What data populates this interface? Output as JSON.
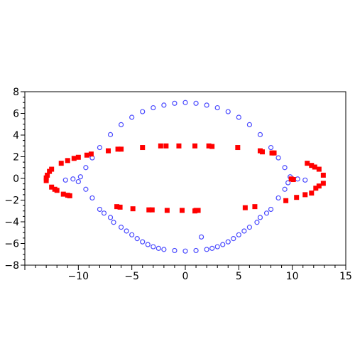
{
  "chart_data": {
    "type": "scatter",
    "title": "",
    "xlabel": "",
    "ylabel": "",
    "xlim": [
      -15,
      15
    ],
    "ylim": [
      -8,
      8
    ],
    "x_ticks": [
      -10,
      -5,
      0,
      5,
      10,
      15
    ],
    "x_tick_labels": [
      "−10",
      "−5",
      "0",
      "5",
      "10",
      "15"
    ],
    "y_ticks": [
      -8,
      -6,
      -4,
      -2,
      0,
      2,
      4,
      6,
      8
    ],
    "y_tick_labels": [
      "−8",
      "−6",
      "−4",
      "−2",
      "0",
      "2",
      "4",
      "6",
      "8"
    ],
    "grid": false,
    "legend": "none",
    "series": [
      {
        "marker": "open-circle",
        "color": "#4b4bff",
        "points": [
          [
            0.0,
            7.0
          ],
          [
            1.0,
            6.93
          ],
          [
            -1.0,
            6.93
          ],
          [
            2.0,
            6.76
          ],
          [
            -2.0,
            6.76
          ],
          [
            3.0,
            6.52
          ],
          [
            -3.0,
            6.52
          ],
          [
            4.0,
            6.16
          ],
          [
            -4.0,
            6.16
          ],
          [
            5.0,
            5.64
          ],
          [
            -5.0,
            5.64
          ],
          [
            6.0,
            4.96
          ],
          [
            -6.0,
            4.96
          ],
          [
            7.0,
            4.04
          ],
          [
            -7.0,
            4.04
          ],
          [
            8.0,
            2.85
          ],
          [
            -8.0,
            2.85
          ],
          [
            8.7,
            1.9
          ],
          [
            -8.7,
            1.9
          ],
          [
            9.3,
            1.0
          ],
          [
            -9.3,
            1.0
          ],
          [
            9.8,
            0.15
          ],
          [
            -9.8,
            0.15
          ],
          [
            10.5,
            -0.05
          ],
          [
            -10.5,
            -0.05
          ],
          [
            11.2,
            -0.15
          ],
          [
            -11.2,
            -0.15
          ],
          [
            9.3,
            -1.0
          ],
          [
            -9.3,
            -1.0
          ],
          [
            8.7,
            -1.8
          ],
          [
            -8.7,
            -1.8
          ],
          [
            8.0,
            -2.85
          ],
          [
            -8.0,
            -2.85
          ],
          [
            7.0,
            -3.6
          ],
          [
            -7.0,
            -3.6
          ],
          [
            6.0,
            -4.5
          ],
          [
            -6.0,
            -4.5
          ],
          [
            5.0,
            -5.2
          ],
          [
            -5.0,
            -5.2
          ],
          [
            4.0,
            -5.85
          ],
          [
            -4.0,
            -5.85
          ],
          [
            3.0,
            -6.3
          ],
          [
            -3.0,
            -6.3
          ],
          [
            2.0,
            -6.55
          ],
          [
            -2.0,
            -6.55
          ],
          [
            1.0,
            -6.65
          ],
          [
            -1.0,
            -6.65
          ],
          [
            0.0,
            -6.7
          ],
          [
            1.5,
            -5.4
          ],
          [
            -10.0,
            -0.3
          ],
          [
            9.6,
            -0.4
          ],
          [
            7.6,
            -3.2
          ],
          [
            -7.6,
            -3.2
          ],
          [
            6.7,
            -4.05
          ],
          [
            -6.7,
            -4.05
          ],
          [
            5.5,
            -4.85
          ],
          [
            -5.5,
            -4.85
          ],
          [
            4.5,
            -5.55
          ],
          [
            -4.5,
            -5.55
          ],
          [
            3.5,
            -6.1
          ],
          [
            -3.5,
            -6.1
          ],
          [
            2.5,
            -6.45
          ],
          [
            -2.5,
            -6.45
          ]
        ]
      },
      {
        "marker": "filled-square",
        "color": "#ff0000",
        "points": [
          [
            0.9,
            3.0
          ],
          [
            -0.6,
            3.0
          ],
          [
            -1.8,
            3.0
          ],
          [
            -2.3,
            3.0
          ],
          [
            2.2,
            3.0
          ],
          [
            2.5,
            2.95
          ],
          [
            4.9,
            2.85
          ],
          [
            -4.0,
            2.85
          ],
          [
            -6.3,
            2.7
          ],
          [
            -6.0,
            2.7
          ],
          [
            -7.2,
            2.55
          ],
          [
            7.0,
            2.55
          ],
          [
            7.2,
            2.45
          ],
          [
            8.1,
            2.35
          ],
          [
            8.3,
            2.35
          ],
          [
            -8.8,
            2.25
          ],
          [
            -9.2,
            2.15
          ],
          [
            -10.0,
            1.95
          ],
          [
            -10.4,
            1.85
          ],
          [
            -11.0,
            1.65
          ],
          [
            -11.6,
            1.4
          ],
          [
            11.4,
            1.4
          ],
          [
            11.8,
            1.2
          ],
          [
            12.1,
            1.05
          ],
          [
            12.5,
            0.85
          ],
          [
            -12.5,
            0.85
          ],
          [
            -12.7,
            0.65
          ],
          [
            -12.9,
            0.3
          ],
          [
            12.9,
            0.3
          ],
          [
            -13.0,
            0.05
          ],
          [
            -13.0,
            -0.2
          ],
          [
            9.9,
            -0.05
          ],
          [
            10.1,
            -0.1
          ],
          [
            12.9,
            -0.45
          ],
          [
            -12.5,
            -0.8
          ],
          [
            12.5,
            -0.7
          ],
          [
            12.2,
            -0.9
          ],
          [
            -12.2,
            -1.0
          ],
          [
            -12.0,
            -1.1
          ],
          [
            -11.4,
            -1.45
          ],
          [
            -11.0,
            -1.55
          ],
          [
            -10.8,
            -1.6
          ],
          [
            11.8,
            -1.35
          ],
          [
            11.2,
            -1.5
          ],
          [
            10.4,
            -1.75
          ],
          [
            9.4,
            -2.05
          ],
          [
            6.5,
            -2.6
          ],
          [
            5.6,
            -2.7
          ],
          [
            -6.1,
            -2.65
          ],
          [
            -6.4,
            -2.6
          ],
          [
            -4.9,
            -2.8
          ],
          [
            -3.4,
            -2.9
          ],
          [
            -3.1,
            -2.9
          ],
          [
            -1.7,
            -2.95
          ],
          [
            -0.3,
            -2.95
          ],
          [
            1.0,
            -2.95
          ],
          [
            1.2,
            -2.95
          ],
          [
            0.9,
            -3.0
          ]
        ]
      }
    ]
  }
}
